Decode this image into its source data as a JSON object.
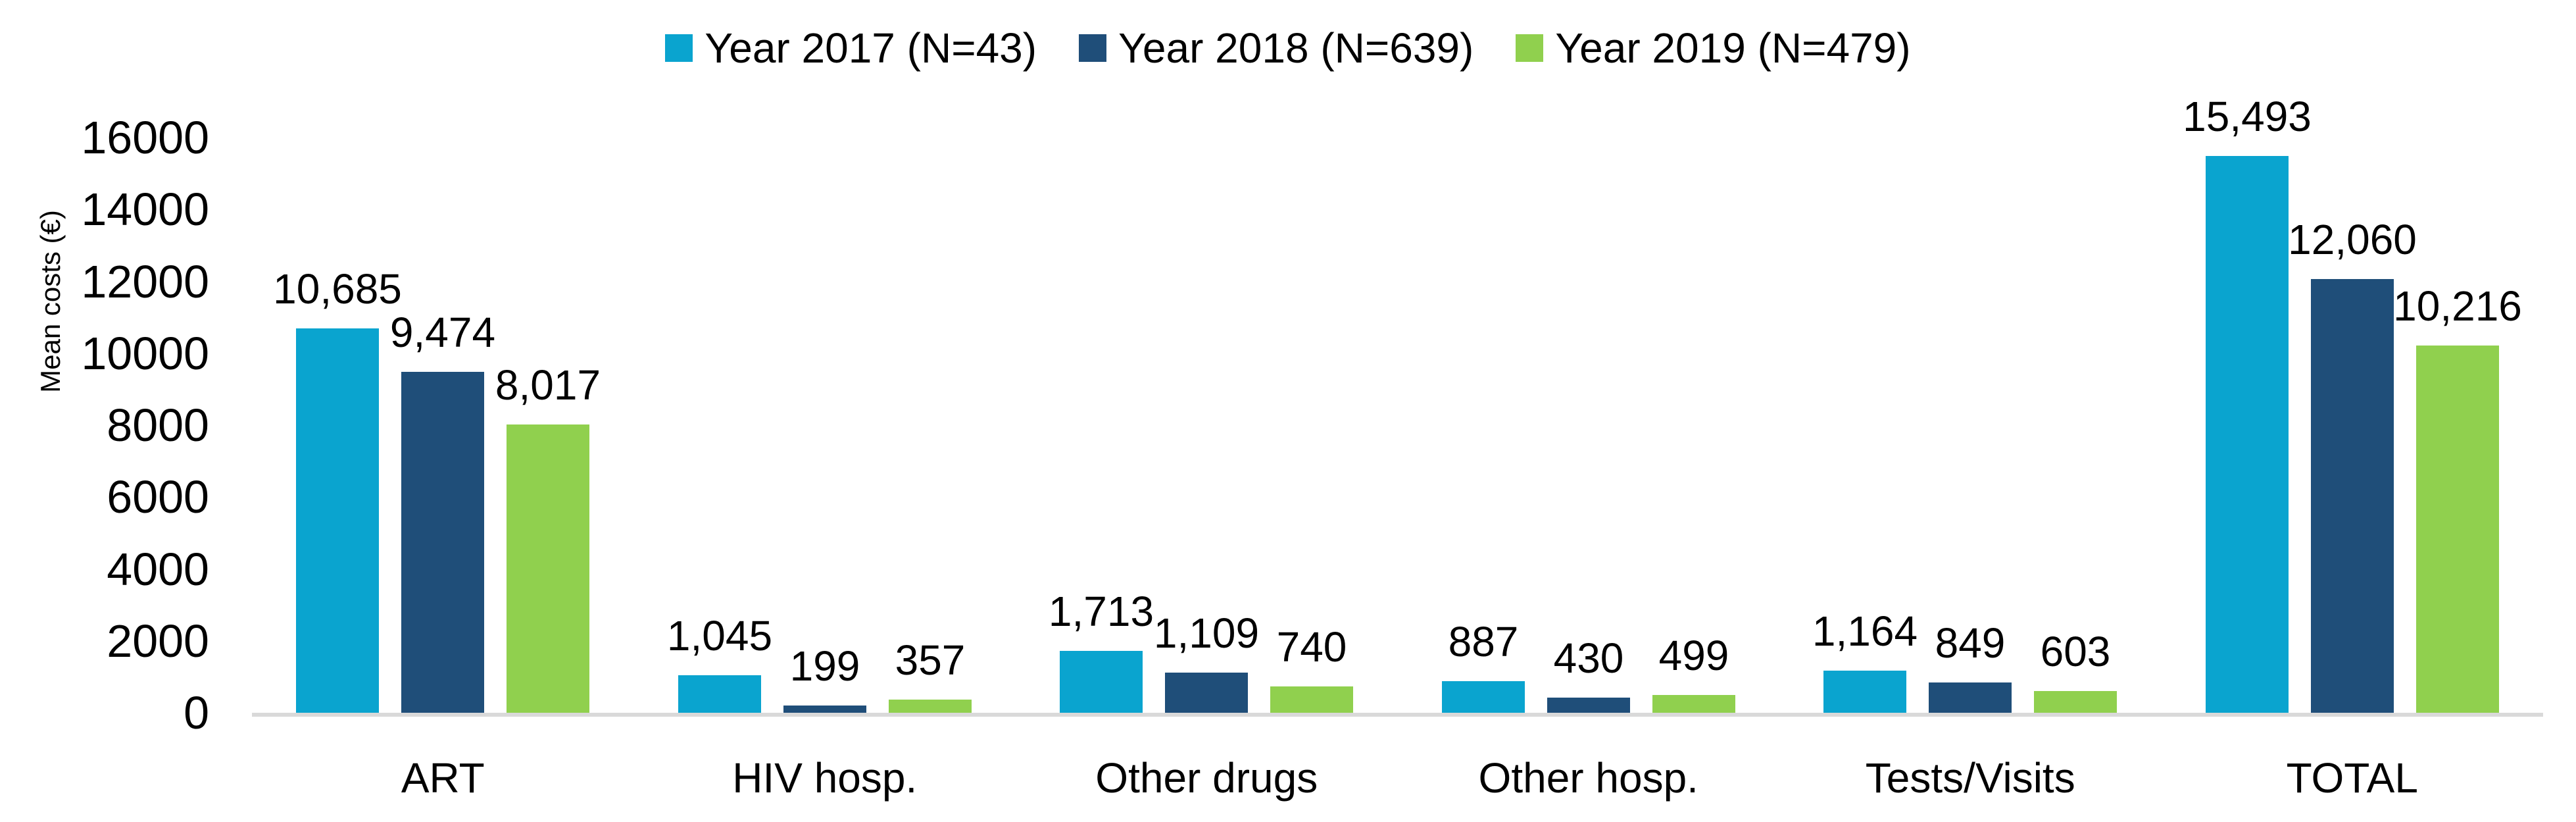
{
  "chart_data": {
    "type": "bar",
    "title": "",
    "ylabel": "Mean costs (€)",
    "xlabel": "",
    "categories": [
      "ART",
      "HIV hosp.",
      "Other drugs",
      "Other hosp.",
      "Tests/Visits",
      "TOTAL"
    ],
    "series": [
      {
        "name": "Year 2017 (N=43)",
        "color": "#0AA4CF",
        "values": [
          10685,
          1045,
          1713,
          887,
          1164,
          15493
        ]
      },
      {
        "name": "Year 2018 (N=639)",
        "color": "#1F4E79",
        "values": [
          9474,
          199,
          1109,
          430,
          849,
          12060
        ]
      },
      {
        "name": "Year 2019 (N=479)",
        "color": "#90D04E",
        "values": [
          8017,
          357,
          740,
          499,
          603,
          10216
        ]
      }
    ],
    "ylim": [
      0,
      16000
    ],
    "ytick_labels": [
      "0",
      "2000",
      "4000",
      "6000",
      "8000",
      "10000",
      "12000",
      "14000",
      "16000"
    ],
    "legend_position": "top",
    "grid": false,
    "axis_line_color": "#D9D9D9",
    "text_color": "#000000",
    "value_label_format": "thousands-comma"
  }
}
